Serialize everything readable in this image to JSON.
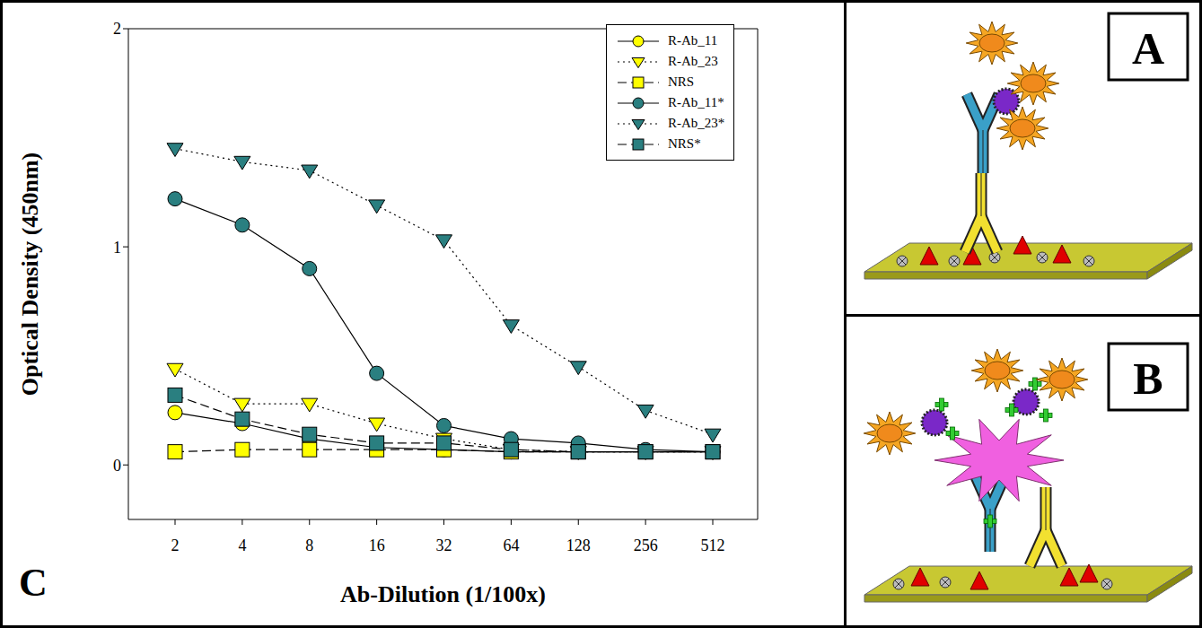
{
  "chart_data": {
    "type": "line",
    "panel_label": "C",
    "x_label": "Ab-Dilution (1/100x)",
    "y_label": "Optical Density (450nm)",
    "categories": [
      "2",
      "4",
      "8",
      "16",
      "32",
      "64",
      "128",
      "256",
      "512"
    ],
    "ylim": [
      -0.25,
      2
    ],
    "yticks": [
      0,
      1,
      2
    ],
    "legend": "top-right",
    "series": [
      {
        "name": "R-Ab_11",
        "color": "#ffff00",
        "marker": "circle",
        "line_style": "solid",
        "values": [
          0.24,
          0.19,
          0.12,
          0.08,
          0.07,
          0.06,
          0.06,
          0.06,
          0.06
        ]
      },
      {
        "name": "R-Ab_23",
        "color": "#ffff00",
        "marker": "triangle-down",
        "line_style": "dotted",
        "values": [
          0.44,
          0.28,
          0.28,
          0.19,
          0.12,
          0.07,
          0.06,
          0.06,
          0.06
        ]
      },
      {
        "name": "NRS",
        "color": "#ffff00",
        "marker": "square",
        "line_style": "dashed",
        "values": [
          0.06,
          0.07,
          0.07,
          0.07,
          0.07,
          0.06,
          0.06,
          0.06,
          0.06
        ]
      },
      {
        "name": "R-Ab_11*",
        "color": "#2a7f80",
        "marker": "circle",
        "line_style": "solid",
        "values": [
          1.22,
          1.1,
          0.9,
          0.42,
          0.18,
          0.12,
          0.1,
          0.07,
          0.06
        ]
      },
      {
        "name": "R-Ab_23*",
        "color": "#2a7f80",
        "marker": "triangle-down",
        "line_style": "dotted",
        "values": [
          1.45,
          1.39,
          1.35,
          1.19,
          1.03,
          0.64,
          0.45,
          0.25,
          0.14
        ]
      },
      {
        "name": "NRS*",
        "color": "#2a7f80",
        "marker": "square",
        "line_style": "dashed",
        "values": [
          0.32,
          0.21,
          0.14,
          0.1,
          0.1,
          0.07,
          0.06,
          0.06,
          0.06
        ]
      }
    ]
  },
  "diagrams": [
    {
      "label": "A"
    },
    {
      "label": "B"
    }
  ]
}
